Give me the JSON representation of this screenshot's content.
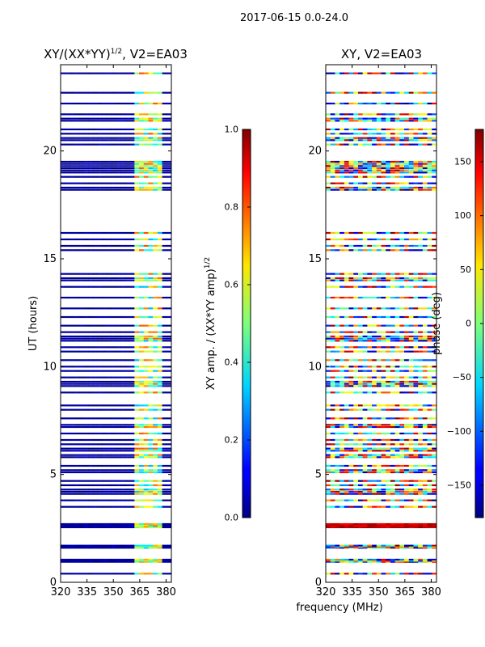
{
  "page_title": "2017-06-15 0.0-24.0",
  "colors": {
    "background": "#ffffff",
    "axis": "#000000"
  },
  "chart_data": [
    {
      "type": "heatmap",
      "id": "left",
      "title_main": "XY/(XX*YY)",
      "title_sup": "1/2",
      "title_tail": ", V2=EA03",
      "xlabel": "",
      "ylabel": "UT (hours)",
      "xlim": [
        320,
        383
      ],
      "ylim": [
        0,
        24
      ],
      "xticks": [
        320,
        335,
        350,
        365,
        380
      ],
      "yticks": [
        0,
        5,
        10,
        15,
        20
      ],
      "colormap": "jet",
      "colorbar": {
        "label_main": "XY amp. / (XX*YY amp)",
        "label_sup": "1/2",
        "range": [
          0.0,
          1.0
        ],
        "ticks": [
          "0.0",
          "0.2",
          "0.4",
          "0.6",
          "0.8",
          "1.0"
        ]
      }
    },
    {
      "type": "heatmap",
      "id": "right",
      "title": "XY, V2=EA03",
      "xlabel": "frequency (MHz)",
      "ylabel": "",
      "xlim": [
        320,
        383
      ],
      "ylim": [
        0,
        24
      ],
      "xticks": [
        320,
        335,
        350,
        365,
        380
      ],
      "yticks": [
        0,
        5,
        10,
        15,
        20
      ],
      "colormap": "jet",
      "colorbar": {
        "label": "phase (deg)",
        "range": [
          -180,
          180
        ],
        "ticks": [
          "−150",
          "−100",
          "−50",
          "0",
          "50",
          "100",
          "150"
        ]
      }
    }
  ],
  "time_rows_hours": [
    0.4,
    0.95,
    1.0,
    1.05,
    1.6,
    1.65,
    1.7,
    2.55,
    2.6,
    2.65,
    2.7,
    3.5,
    3.8,
    4.1,
    4.2,
    4.3,
    4.5,
    4.7,
    5.1,
    5.2,
    5.4,
    5.8,
    5.9,
    6.1,
    6.2,
    6.4,
    6.6,
    6.9,
    7.2,
    7.3,
    7.6,
    8.0,
    8.2,
    8.8,
    9.1,
    9.2,
    9.3,
    9.5,
    9.8,
    10.0,
    10.3,
    10.7,
    10.9,
    11.2,
    11.3,
    11.4,
    11.6,
    11.9,
    12.3,
    12.7,
    13.2,
    13.7,
    14.0,
    14.1,
    14.3,
    15.4,
    15.6,
    15.9,
    16.2,
    18.2,
    18.3,
    18.5,
    18.8,
    19.0,
    19.1,
    19.2,
    19.3,
    19.4,
    19.5,
    20.3,
    20.5,
    20.6,
    20.8,
    21.0,
    21.4,
    21.5,
    21.7,
    22.2,
    22.7,
    23.6
  ]
}
